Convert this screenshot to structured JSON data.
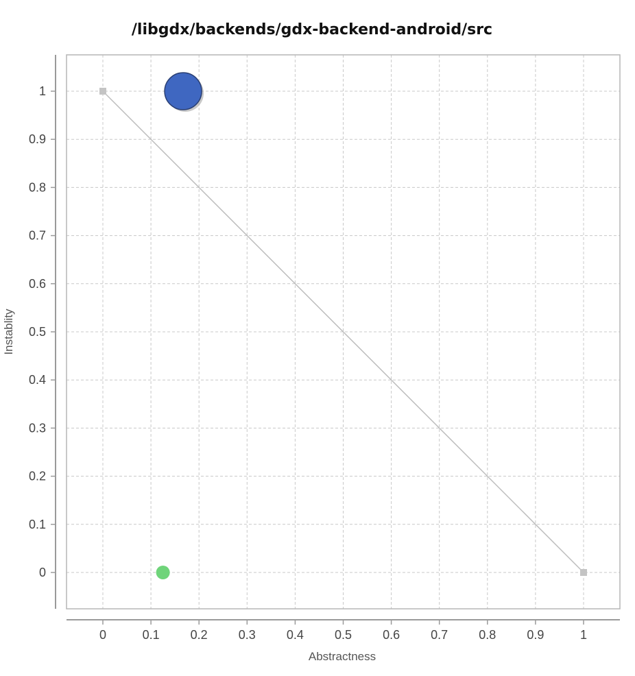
{
  "chart_data": {
    "type": "scatter",
    "title": "/libgdx/backends/gdx-backend-android/src",
    "xlabel": "Abstractness",
    "ylabel": "Instablity",
    "xlim": [
      -0.075,
      1.075
    ],
    "ylim": [
      -0.075,
      1.075
    ],
    "xticks": [
      "0",
      "0.1",
      "0.2",
      "0.3",
      "0.4",
      "0.5",
      "0.6",
      "0.7",
      "0.8",
      "0.9",
      "1"
    ],
    "yticks": [
      "0",
      "0.1",
      "0.2",
      "0.3",
      "0.4",
      "0.5",
      "0.6",
      "0.7",
      "0.8",
      "0.9",
      "1"
    ],
    "grid": true,
    "reference_line": {
      "from": [
        0,
        1
      ],
      "to": [
        1,
        0
      ],
      "color": "#bdbdbd"
    },
    "points": [
      {
        "x": 0.167,
        "y": 1.0,
        "size": "large",
        "color": "#3f67c1"
      },
      {
        "x": 0.125,
        "y": 0.0,
        "size": "small",
        "color": "#6fd47a"
      }
    ]
  }
}
